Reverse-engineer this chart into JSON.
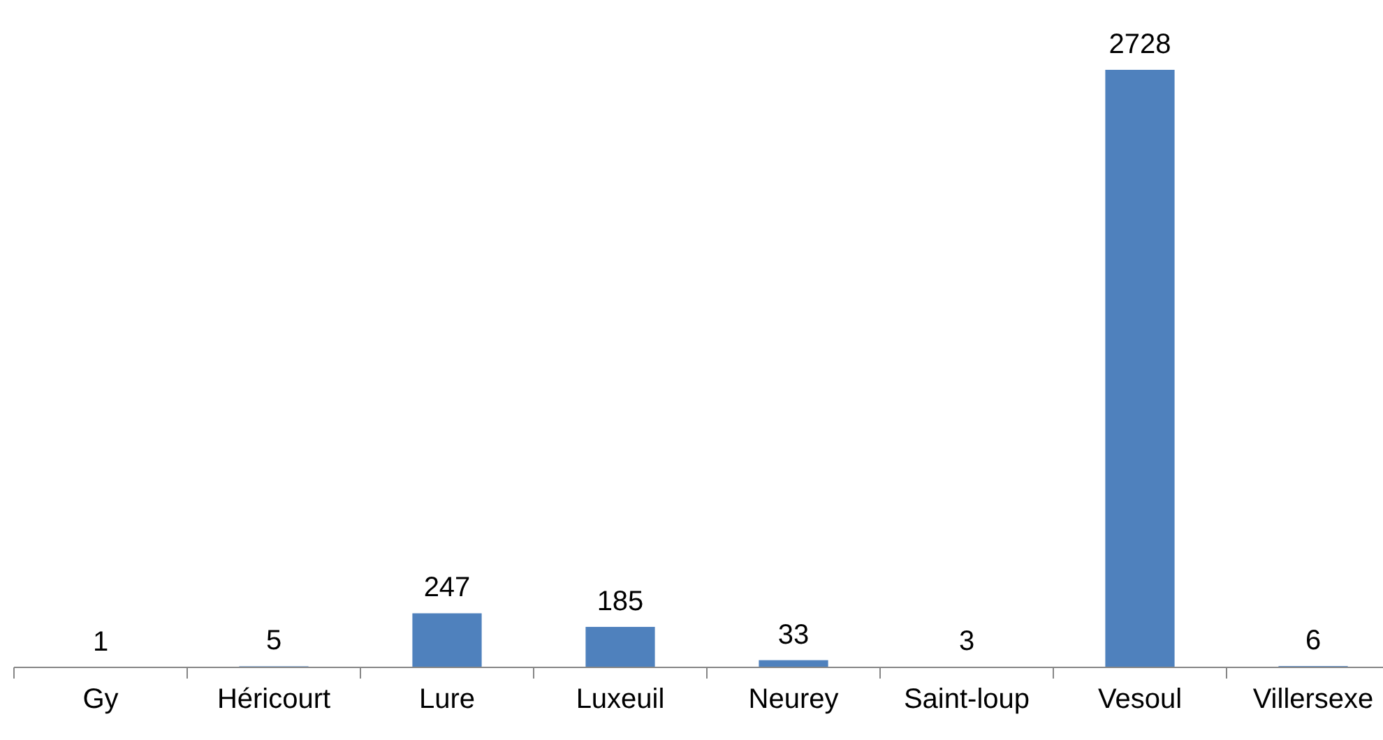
{
  "chart_data": {
    "type": "bar",
    "categories": [
      "Gy",
      "Héricourt",
      "Lure",
      "Luxeuil",
      "Neurey",
      "Saint-loup",
      "Vesoul",
      "Villersexe"
    ],
    "values": [
      1,
      5,
      247,
      185,
      33,
      3,
      2728,
      6
    ],
    "color": "#4f81bd",
    "data_labels": true
  }
}
